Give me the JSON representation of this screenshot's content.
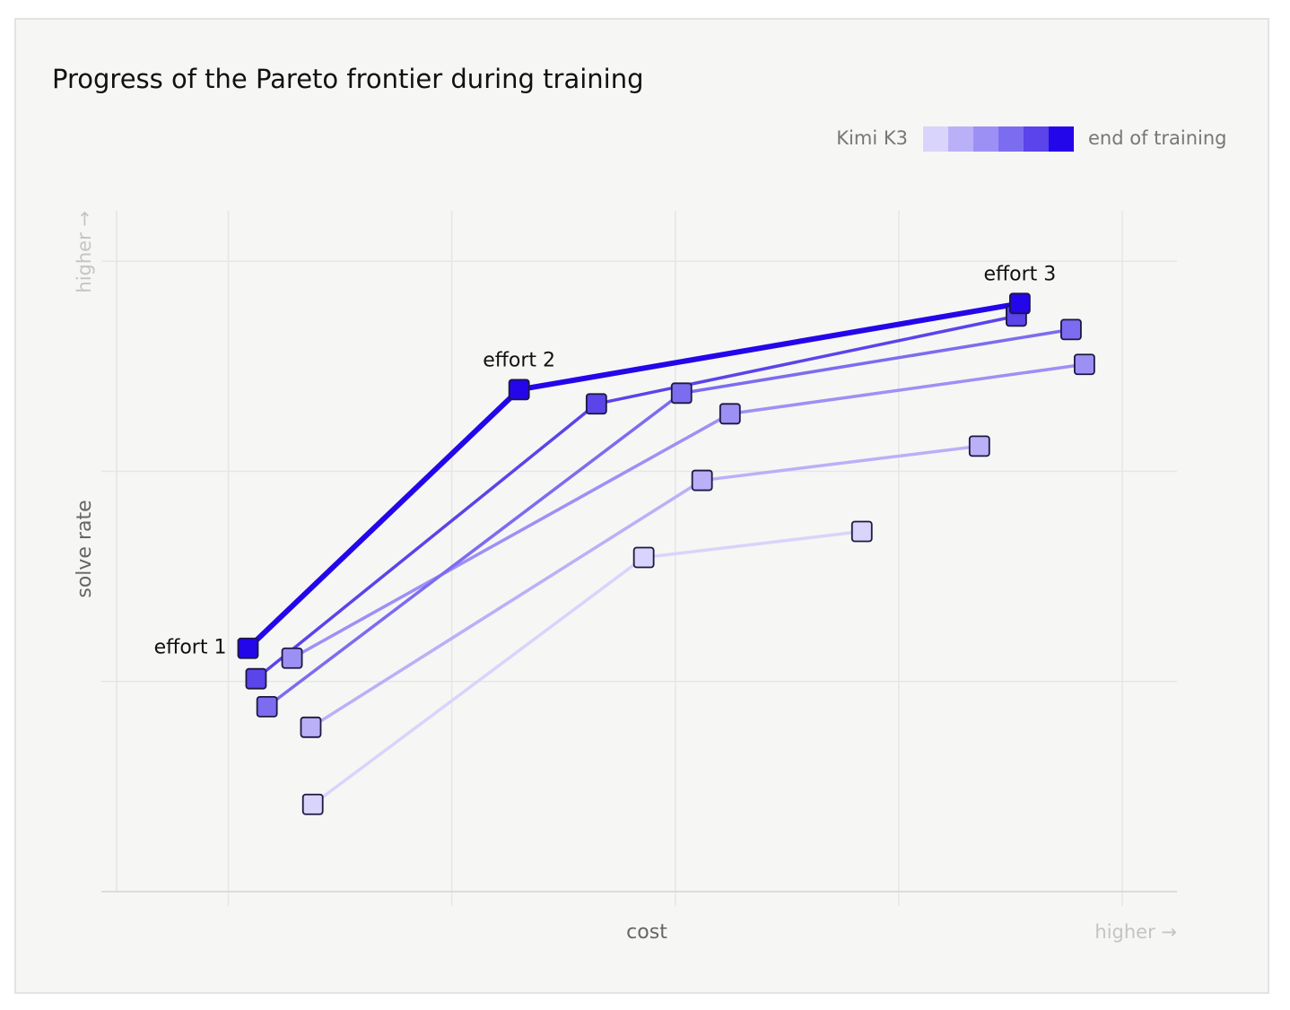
{
  "chart_data": {
    "type": "line",
    "title": "Progress of the Pareto frontier during training",
    "xlabel": "cost",
    "ylabel": "solve rate",
    "x_direction_label": "higher →",
    "y_direction_label": "higher →",
    "legend": {
      "start_label": "Kimi K3",
      "end_label": "end of training"
    },
    "annotations": [
      "effort 1",
      "effort 2",
      "effort 3"
    ],
    "xlim": [
      0.5,
      5.245
    ],
    "ylim": [
      0,
      3.24
    ],
    "xticks": [
      1,
      2,
      3,
      4,
      5
    ],
    "yticks": [
      1,
      2,
      3
    ],
    "grid": true,
    "series": [
      {
        "color": "#d9d4fb",
        "x": [
          1.378,
          2.859,
          3.835
        ],
        "values": [
          0.415,
          1.59,
          1.714
        ]
      },
      {
        "color": "#bab0f8",
        "x": [
          1.369,
          3.12,
          4.361
        ],
        "values": [
          0.782,
          1.957,
          2.12
        ]
      },
      {
        "color": "#9d90f5",
        "x": [
          1.285,
          3.245,
          4.831
        ],
        "values": [
          1.111,
          2.274,
          2.509
        ]
      },
      {
        "color": "#7c6cf0",
        "x": [
          1.173,
          3.028,
          4.771
        ],
        "values": [
          0.88,
          2.372,
          2.675
        ]
      },
      {
        "color": "#5a44ea",
        "x": [
          1.124,
          2.647,
          4.526
        ],
        "values": [
          1.013,
          2.321,
          2.739
        ]
      },
      {
        "color": "#2406ea",
        "x": [
          1.088,
          2.301,
          4.542
        ],
        "values": [
          1.158,
          2.389,
          2.799
        ]
      }
    ]
  }
}
